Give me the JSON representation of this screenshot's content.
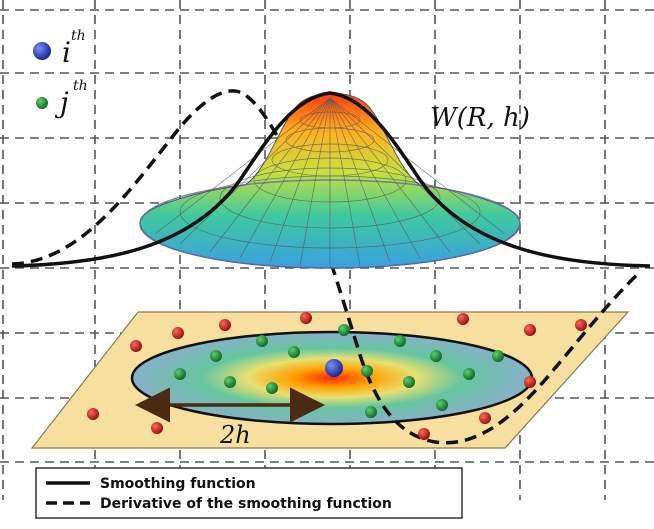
{
  "legend_particles": {
    "i_base": "i",
    "i_sup": "th",
    "j_base": "j",
    "j_sup": "th"
  },
  "function_label": "W(R, h)",
  "radius_label": "2h",
  "legend": {
    "solid": "Smoothing function",
    "dashed": "Derivative of the smoothing function"
  },
  "colors": {
    "i_particle": "#2c3fa8",
    "j_particle": "#1f8a3a",
    "outer_particle": "#cc1f1f",
    "plane": "#f7dfa0",
    "curve": "#111111",
    "arrow": "#4a2a10"
  }
}
